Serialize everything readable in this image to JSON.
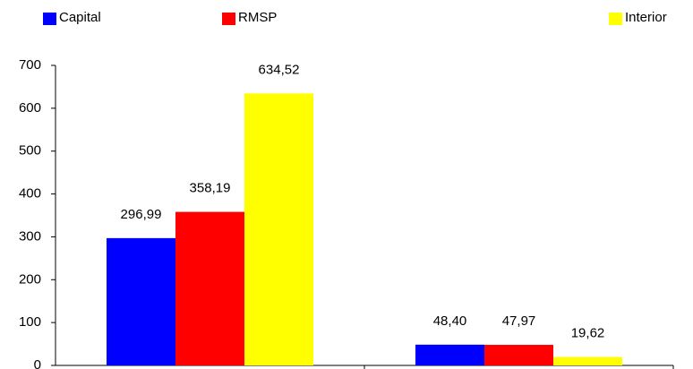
{
  "chart_data": {
    "type": "bar",
    "categories": [
      null,
      null
    ],
    "series": [
      {
        "name": "Capital",
        "color": "#0000ff",
        "values": [
          296.99,
          48.4
        ],
        "value_labels": [
          "296,99",
          "48,40"
        ]
      },
      {
        "name": "RMSP",
        "color": "#ff0000",
        "values": [
          358.19,
          47.97
        ],
        "value_labels": [
          "358,19",
          "47,97"
        ]
      },
      {
        "name": "Interior",
        "color": "#ffff00",
        "values": [
          634.52,
          19.62
        ],
        "value_labels": [
          "634,52",
          "19,62"
        ]
      }
    ],
    "ylim": [
      0,
      700
    ],
    "yticks": [
      0,
      100,
      200,
      300,
      400,
      500,
      600,
      700
    ],
    "grid": false
  }
}
